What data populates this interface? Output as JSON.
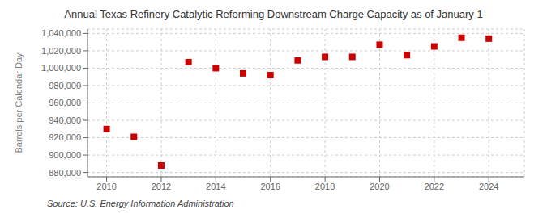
{
  "chart_data": {
    "type": "scatter",
    "title": "Annual Texas Refinery Catalytic Reforming Downstream Charge Capacity as of January 1",
    "ylabel": "Barrels per Calendar Day",
    "annotations": [
      "Source: U.S. Energy Information Administration"
    ],
    "x": [
      2010,
      2011,
      2012,
      2013,
      2014,
      2015,
      2016,
      2017,
      2018,
      2019,
      2020,
      2021,
      2022,
      2023,
      2024
    ],
    "values": [
      930000,
      921000,
      888000,
      1007000,
      1000000,
      994000,
      992000,
      1009000,
      1013000,
      1013000,
      1027000,
      1015000,
      1025000,
      1035000,
      1034000
    ],
    "color": "#cc0000",
    "marker": "square",
    "grid": true,
    "xlim": [
      2009.3,
      2025.3
    ],
    "xticks": [
      2010,
      2012,
      2014,
      2016,
      2018,
      2020,
      2022,
      2024
    ],
    "ylim": [
      875000,
      1045000
    ],
    "yticks": [
      {
        "value": 880000,
        "label": "880,000"
      },
      {
        "value": 900000,
        "label": "900,000"
      },
      {
        "value": 920000,
        "label": "920,000"
      },
      {
        "value": 940000,
        "label": "940,000"
      },
      {
        "value": 960000,
        "label": "960,000"
      },
      {
        "value": 980000,
        "label": "980,000"
      },
      {
        "value": 1000000,
        "label": "1,000,000"
      },
      {
        "value": 1020000,
        "label": "1,020,000"
      },
      {
        "value": 1040000,
        "label": "1,040,000"
      }
    ]
  }
}
